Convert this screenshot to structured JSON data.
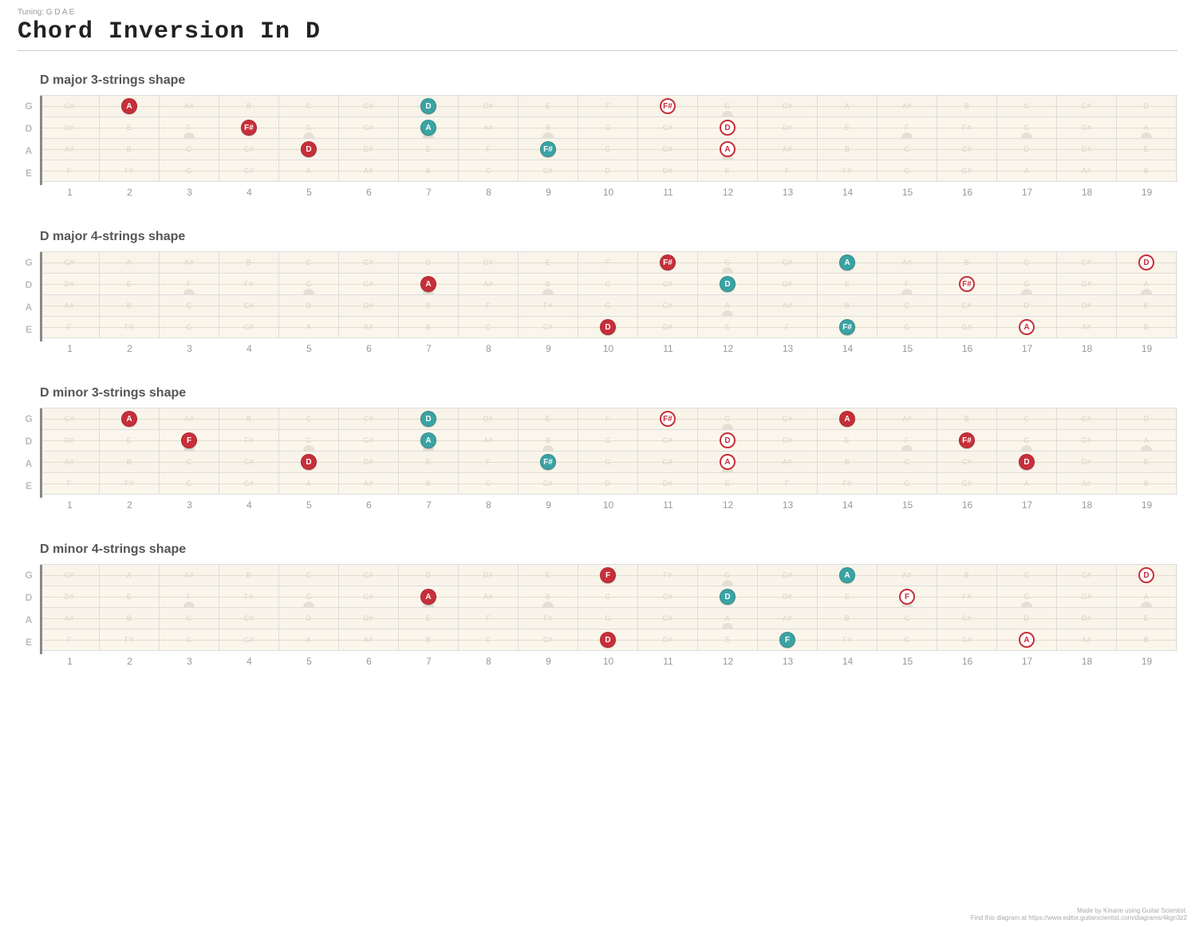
{
  "page": {
    "tuning_label": "Tuning: G D A E",
    "title": "Chord Inversion In D",
    "footer_line1": "Made by Kinane using Guitar Scientist.",
    "footer_line2": "Find this diagram at https://www.editor.guitarscientist.com/diagrams/4kgn3z2"
  },
  "fret_count": 19,
  "open_string_labels": [
    "G",
    "D",
    "A",
    "E"
  ],
  "ghost": {
    "0": [
      "G#",
      "A",
      "A#",
      "B",
      "C",
      "C#",
      "D",
      "D#",
      "E",
      "F",
      "F#",
      "G",
      "G#",
      "A",
      "A#",
      "B",
      "C",
      "C#",
      "D"
    ],
    "1": [
      "D#",
      "E",
      "F",
      "F#",
      "G",
      "G#",
      "A",
      "A#",
      "B",
      "C",
      "C#",
      "D",
      "D#",
      "E",
      "F",
      "F#",
      "G",
      "G#",
      "A"
    ],
    "2": [
      "A#",
      "B",
      "C",
      "C#",
      "D",
      "D#",
      "E",
      "F",
      "F#",
      "G",
      "G#",
      "A",
      "A#",
      "B",
      "C",
      "C#",
      "D",
      "D#",
      "E"
    ],
    "3": [
      "F",
      "F#",
      "G",
      "G#",
      "A",
      "A#",
      "B",
      "C",
      "C#",
      "D",
      "D#",
      "E",
      "F",
      "F#",
      "G",
      "G#",
      "A",
      "A#",
      "B"
    ]
  },
  "inlays": {
    "single": [
      3,
      5,
      7,
      9,
      15,
      17,
      19
    ],
    "double": [
      12
    ]
  },
  "colors": {
    "solid_red": "#c72f3a",
    "solid_teal": "#3aa3a3",
    "bg_row": "#f9f4ea"
  },
  "sections": [
    {
      "title": "D major 3-strings shape",
      "markers": [
        {
          "string": 0,
          "fret": 2,
          "label": "A",
          "style": "solid-red"
        },
        {
          "string": 1,
          "fret": 4,
          "label": "F#",
          "style": "solid-red"
        },
        {
          "string": 2,
          "fret": 5,
          "label": "D",
          "style": "solid-red"
        },
        {
          "string": 0,
          "fret": 7,
          "label": "D",
          "style": "solid-teal"
        },
        {
          "string": 1,
          "fret": 7,
          "label": "A",
          "style": "solid-teal"
        },
        {
          "string": 2,
          "fret": 9,
          "label": "F#",
          "style": "solid-teal"
        },
        {
          "string": 0,
          "fret": 11,
          "label": "F#",
          "style": "outline-red"
        },
        {
          "string": 1,
          "fret": 12,
          "label": "D",
          "style": "outline-red"
        },
        {
          "string": 2,
          "fret": 12,
          "label": "A",
          "style": "outline-red"
        }
      ]
    },
    {
      "title": "D major 4-strings shape",
      "markers": [
        {
          "string": 1,
          "fret": 7,
          "label": "A",
          "style": "solid-red"
        },
        {
          "string": 3,
          "fret": 10,
          "label": "D",
          "style": "solid-red"
        },
        {
          "string": 0,
          "fret": 11,
          "label": "F#",
          "style": "solid-red"
        },
        {
          "string": 1,
          "fret": 12,
          "label": "D",
          "style": "solid-teal"
        },
        {
          "string": 0,
          "fret": 14,
          "label": "A",
          "style": "solid-teal"
        },
        {
          "string": 3,
          "fret": 14,
          "label": "F#",
          "style": "solid-teal"
        },
        {
          "string": 1,
          "fret": 16,
          "label": "F#",
          "style": "outline-red"
        },
        {
          "string": 3,
          "fret": 17,
          "label": "A",
          "style": "outline-red"
        },
        {
          "string": 0,
          "fret": 19,
          "label": "D",
          "style": "outline-red"
        }
      ]
    },
    {
      "title": "D minor 3-strings shape",
      "markers": [
        {
          "string": 0,
          "fret": 2,
          "label": "A",
          "style": "solid-red"
        },
        {
          "string": 1,
          "fret": 3,
          "label": "F",
          "style": "solid-red"
        },
        {
          "string": 2,
          "fret": 5,
          "label": "D",
          "style": "solid-red"
        },
        {
          "string": 0,
          "fret": 7,
          "label": "D",
          "style": "solid-teal"
        },
        {
          "string": 1,
          "fret": 7,
          "label": "A",
          "style": "solid-teal"
        },
        {
          "string": 2,
          "fret": 9,
          "label": "F#",
          "style": "solid-teal"
        },
        {
          "string": 0,
          "fret": 11,
          "label": "F#",
          "style": "outline-red"
        },
        {
          "string": 1,
          "fret": 12,
          "label": "D",
          "style": "outline-red"
        },
        {
          "string": 2,
          "fret": 12,
          "label": "A",
          "style": "outline-red"
        },
        {
          "string": 0,
          "fret": 14,
          "label": "A",
          "style": "solid-red"
        },
        {
          "string": 1,
          "fret": 16,
          "label": "F#",
          "style": "solid-red"
        },
        {
          "string": 2,
          "fret": 17,
          "label": "D",
          "style": "solid-red"
        }
      ]
    },
    {
      "title": "D minor 4-strings shape",
      "markers": [
        {
          "string": 1,
          "fret": 7,
          "label": "A",
          "style": "solid-red"
        },
        {
          "string": 0,
          "fret": 10,
          "label": "F",
          "style": "solid-red"
        },
        {
          "string": 3,
          "fret": 10,
          "label": "D",
          "style": "solid-red"
        },
        {
          "string": 1,
          "fret": 12,
          "label": "D",
          "style": "solid-teal"
        },
        {
          "string": 3,
          "fret": 13,
          "label": "F",
          "style": "solid-teal"
        },
        {
          "string": 0,
          "fret": 14,
          "label": "A",
          "style": "solid-teal"
        },
        {
          "string": 1,
          "fret": 15,
          "label": "F",
          "style": "outline-red"
        },
        {
          "string": 3,
          "fret": 17,
          "label": "A",
          "style": "outline-red"
        },
        {
          "string": 0,
          "fret": 19,
          "label": "D",
          "style": "outline-red"
        }
      ]
    }
  ]
}
